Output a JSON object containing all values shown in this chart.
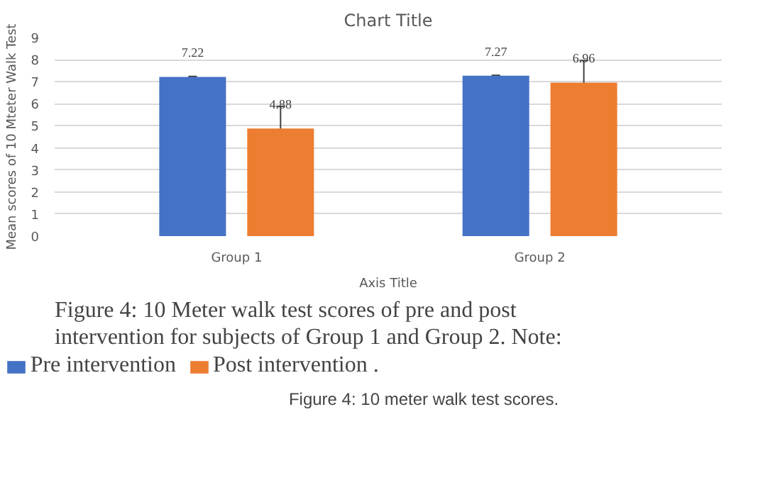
{
  "chart_data": {
    "type": "bar",
    "title": "Chart Title",
    "xlabel": "Axis Title",
    "ylabel": "Mean scores of 10 Mteter Walk Test",
    "categories": [
      "Group 1",
      "Group 2"
    ],
    "series": [
      {
        "name": "Pre intervention",
        "color": "#4472c4",
        "values": [
          7.22,
          7.27
        ],
        "errors": [
          0.02,
          0.02
        ]
      },
      {
        "name": "Post intervention .",
        "color": "#ed7d31",
        "values": [
          4.88,
          6.96
        ],
        "errors": [
          1.0,
          1.0
        ]
      }
    ],
    "ylim": [
      0,
      9
    ],
    "yticks": [
      0,
      1,
      2,
      3,
      4,
      5,
      6,
      7,
      8,
      9
    ],
    "grid": "y",
    "legend": "bottom",
    "data_labels": true,
    "annotations": [
      "Figure 4: 10 Meter walk test scores of pre and post intervention for subjects of Group 1 and Group 2. Note:",
      "Figure 4: 10 meter walk test scores."
    ]
  }
}
